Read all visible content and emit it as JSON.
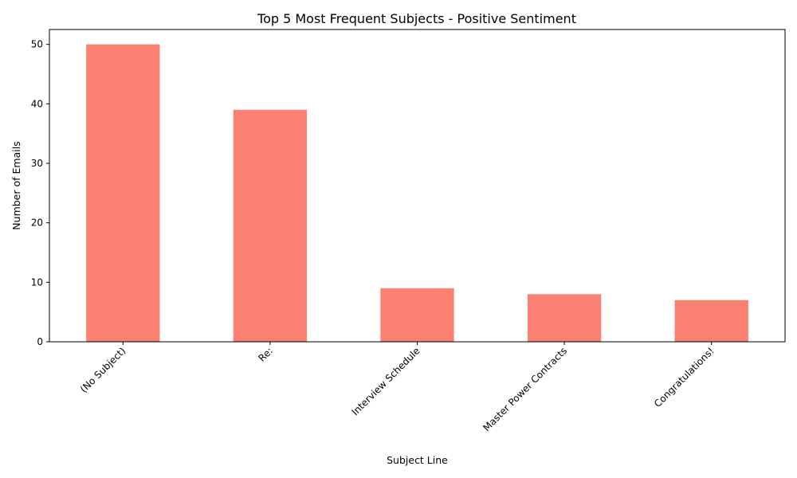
{
  "chart_data": {
    "type": "bar",
    "title": "Top 5 Most Frequent Subjects - Positive Sentiment",
    "xlabel": "Subject Line",
    "ylabel": "Number of Emails",
    "categories": [
      "(No Subject)",
      "Re:",
      "Interview Schedule",
      "Master Power Contracts",
      "Congratulations!"
    ],
    "values": [
      50,
      39,
      9,
      8,
      7
    ],
    "ylim": [
      0,
      52.5
    ],
    "yticks": [
      0,
      10,
      20,
      30,
      40,
      50
    ],
    "bar_color": "#fa8072",
    "grid": false,
    "legend": false
  }
}
